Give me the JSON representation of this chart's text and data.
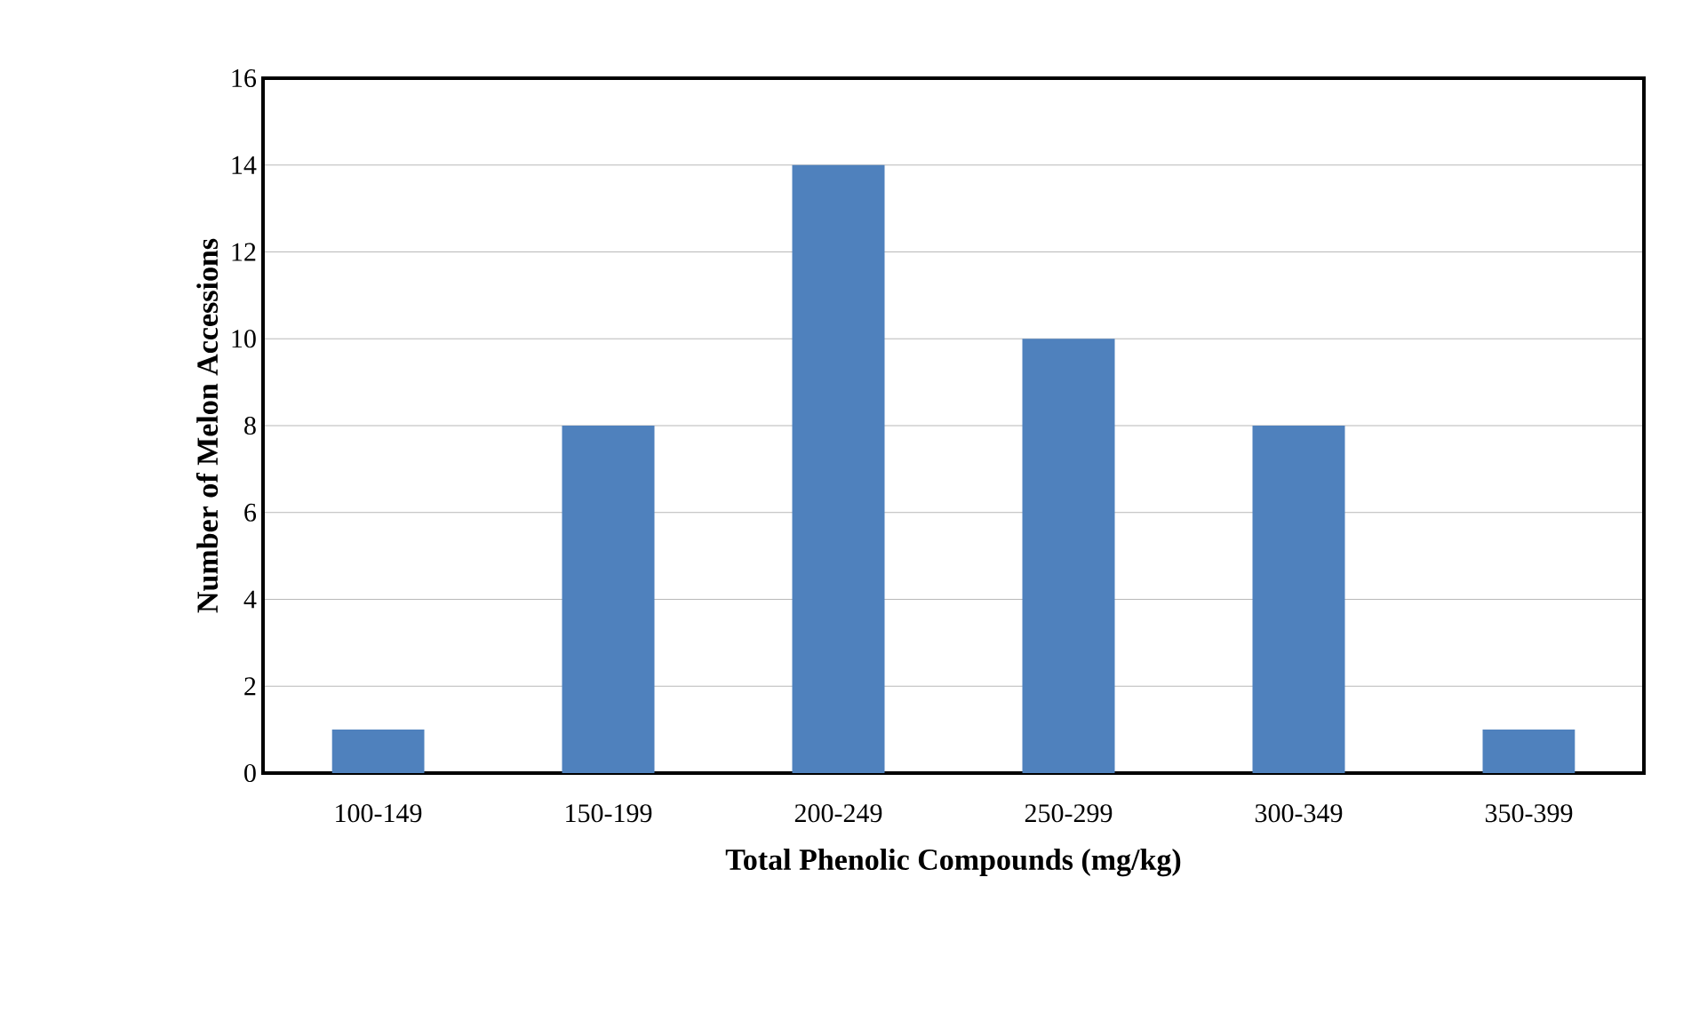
{
  "chart_data": {
    "type": "bar",
    "xlabel": "Total Phenolic Compounds (mg/kg)",
    "ylabel": "Number of Melon Accessions",
    "categories": [
      "100-149",
      "150-199",
      "200-249",
      "250-299",
      "300-349",
      "350-399"
    ],
    "values": [
      1,
      8,
      14,
      10,
      8,
      1
    ],
    "color": "#4f81bd",
    "ylim": [
      0,
      16
    ],
    "yticks": [
      0,
      2,
      4,
      6,
      8,
      10,
      12,
      14,
      16
    ],
    "grid": "y"
  }
}
